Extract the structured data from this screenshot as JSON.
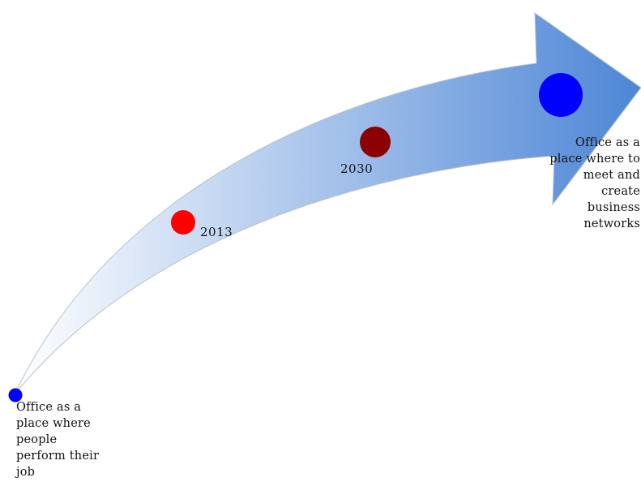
{
  "colors": {
    "arrow_start": "#ffffff",
    "arrow_end": "#4d86d6",
    "arrow_edge": "#b8c2cc",
    "start_dot": "#0000ff",
    "milestone_2013": "#ff0000",
    "milestone_2030": "#8b0000",
    "end_dot": "#0000ff"
  },
  "start": {
    "label": "Office as a\nplace where\npeople\nperform their\njob"
  },
  "milestones": [
    {
      "year": "2013"
    },
    {
      "year": "2030"
    }
  ],
  "end": {
    "label": "Office as a\nplace where to\nmeet and\ncreate\nbusiness\nnetworks"
  }
}
